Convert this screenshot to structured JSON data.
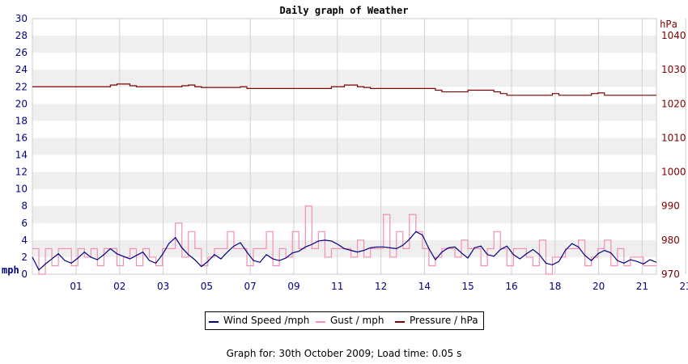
{
  "chart_data": {
    "type": "line",
    "title": "Daily graph of Weather",
    "left_axis": {
      "unit": "mph",
      "ylim": [
        0,
        30
      ],
      "ticks": [
        0,
        2,
        4,
        6,
        8,
        10,
        12,
        14,
        16,
        18,
        20,
        22,
        24,
        26,
        28,
        30
      ]
    },
    "right_axis": {
      "unit": "hPa",
      "ylim": [
        970,
        1045
      ],
      "ticks": [
        970,
        980,
        990,
        1000,
        1010,
        1020,
        1030,
        1040
      ]
    },
    "x_ticks": [
      "01",
      "02",
      "03",
      "05",
      "07",
      "09",
      "11",
      "12",
      "14",
      "15",
      "16",
      "18",
      "20",
      "21",
      "23"
    ],
    "grid": true,
    "legend_position": "bottom",
    "series": [
      {
        "name": "Wind Speed /mph",
        "color": "#00007f",
        "axis": "left",
        "x": [
          0,
          0.25,
          0.5,
          0.75,
          1.0,
          1.25,
          1.5,
          1.75,
          2.0,
          2.25,
          2.5,
          2.75,
          3.0,
          3.25,
          3.5,
          3.75,
          4.0,
          4.25,
          4.5,
          4.75,
          5.0,
          5.25,
          5.5,
          5.75,
          6.0,
          6.25,
          6.5,
          6.75,
          7.0,
          7.25,
          7.5,
          7.75,
          8.0,
          8.25,
          8.5,
          8.75,
          9.0,
          9.25,
          9.5,
          9.75,
          10.0,
          10.25,
          10.5,
          10.75,
          11.0,
          11.25,
          11.5,
          11.75,
          12.0,
          12.25,
          12.5,
          12.75,
          13.0,
          13.25,
          13.5,
          13.75,
          14.0,
          14.25,
          14.5,
          14.75,
          15.0,
          15.25,
          15.5,
          15.75,
          16.0,
          16.25,
          16.5,
          16.75,
          17.0,
          17.25,
          17.5,
          17.75,
          18.0,
          18.25,
          18.5,
          18.75,
          19.0,
          19.25,
          19.5,
          19.75,
          20.0,
          20.25,
          20.5,
          20.75,
          21.0,
          21.25,
          21.5,
          21.75,
          22.0,
          22.25,
          22.5,
          22.75,
          23.0,
          23.25,
          23.5,
          23.75,
          24.0
        ],
        "values": [
          2.0,
          0.5,
          1.2,
          1.8,
          2.4,
          1.6,
          1.3,
          1.9,
          2.6,
          2.0,
          1.7,
          2.3,
          3.0,
          2.4,
          2.1,
          1.8,
          2.2,
          2.6,
          1.6,
          1.3,
          2.3,
          3.6,
          4.3,
          3.1,
          2.3,
          1.7,
          0.9,
          1.5,
          2.3,
          1.8,
          2.6,
          3.3,
          3.7,
          2.6,
          1.6,
          1.4,
          2.3,
          1.8,
          1.6,
          1.9,
          2.5,
          2.7,
          3.2,
          3.5,
          3.9,
          4.0,
          3.9,
          3.5,
          3.0,
          2.8,
          2.6,
          2.8,
          3.1,
          3.2,
          3.2,
          3.1,
          3.0,
          3.4,
          4.1,
          5.0,
          4.6,
          3.0,
          1.7,
          2.6,
          3.1,
          3.2,
          2.5,
          1.9,
          3.1,
          3.3,
          2.3,
          2.1,
          2.9,
          3.3,
          2.3,
          1.8,
          2.4,
          2.9,
          2.3,
          1.3,
          1.1,
          1.5,
          2.8,
          3.6,
          3.2,
          2.2,
          1.6,
          2.4,
          2.8,
          2.5,
          1.6,
          1.3,
          1.7,
          1.5,
          1.2,
          1.7,
          1.4
        ]
      },
      {
        "name": "Gust / mph",
        "color": "#f48fb1",
        "axis": "left",
        "x": [
          0,
          0.25,
          0.5,
          0.75,
          1.0,
          1.25,
          1.5,
          1.75,
          2.0,
          2.25,
          2.5,
          2.75,
          3.0,
          3.25,
          3.5,
          3.75,
          4.0,
          4.25,
          4.5,
          4.75,
          5.0,
          5.25,
          5.5,
          5.75,
          6.0,
          6.25,
          6.5,
          6.75,
          7.0,
          7.25,
          7.5,
          7.75,
          8.0,
          8.25,
          8.5,
          8.75,
          9.0,
          9.25,
          9.5,
          9.75,
          10.0,
          10.25,
          10.5,
          10.75,
          11.0,
          11.25,
          11.5,
          11.75,
          12.0,
          12.25,
          12.5,
          12.75,
          13.0,
          13.25,
          13.5,
          13.75,
          14.0,
          14.25,
          14.5,
          14.75,
          15.0,
          15.25,
          15.5,
          15.75,
          16.0,
          16.25,
          16.5,
          16.75,
          17.0,
          17.25,
          17.5,
          17.75,
          18.0,
          18.25,
          18.5,
          18.75,
          19.0,
          19.25,
          19.5,
          19.75,
          20.0,
          20.25,
          20.5,
          20.75,
          21.0,
          21.25,
          21.5,
          21.75,
          22.0,
          22.25,
          22.5,
          22.75,
          23.0,
          23.25,
          23.5,
          23.75,
          24.0
        ],
        "values": [
          3,
          0,
          3,
          1,
          3,
          3,
          1,
          3,
          2,
          3,
          1,
          3,
          3,
          1,
          2,
          3,
          1,
          3,
          2,
          1,
          3,
          3,
          6,
          2,
          5,
          3,
          1,
          2,
          3,
          3,
          5,
          3,
          3,
          1,
          3,
          3,
          5,
          1,
          3,
          2,
          5,
          3,
          8,
          3,
          5,
          2,
          3,
          3,
          3,
          2,
          4,
          2,
          3,
          3,
          7,
          2,
          5,
          3,
          7,
          5,
          3,
          1,
          2,
          3,
          3,
          2,
          4,
          3,
          3,
          1,
          3,
          5,
          3,
          1,
          3,
          3,
          2,
          1,
          4,
          0,
          2,
          2,
          3,
          3,
          4,
          1,
          2,
          3,
          4,
          1,
          3,
          1,
          2,
          2,
          1,
          1,
          1
        ]
      },
      {
        "name": "Pressure / hPa",
        "color": "#7f0000",
        "axis": "right",
        "x": [
          0,
          0.25,
          0.5,
          0.75,
          1.0,
          1.25,
          1.5,
          1.75,
          2.0,
          2.25,
          2.5,
          2.75,
          3.0,
          3.25,
          3.5,
          3.75,
          4.0,
          4.25,
          4.5,
          4.75,
          5.0,
          5.25,
          5.5,
          5.75,
          6.0,
          6.25,
          6.5,
          6.75,
          7.0,
          7.25,
          7.5,
          7.75,
          8.0,
          8.25,
          8.5,
          8.75,
          9.0,
          9.25,
          9.5,
          9.75,
          10.0,
          10.25,
          10.5,
          10.75,
          11.0,
          11.25,
          11.5,
          11.75,
          12.0,
          12.25,
          12.5,
          12.75,
          13.0,
          13.25,
          13.5,
          13.75,
          14.0,
          14.25,
          14.5,
          14.75,
          15.0,
          15.25,
          15.5,
          15.75,
          16.0,
          16.25,
          16.5,
          16.75,
          17.0,
          17.25,
          17.5,
          17.75,
          18.0,
          18.25,
          18.5,
          18.75,
          19.0,
          19.25,
          19.5,
          19.75,
          20.0,
          20.25,
          20.5,
          20.75,
          21.0,
          21.25,
          21.5,
          21.75,
          22.0,
          22.25,
          22.5,
          22.75,
          23.0,
          23.25,
          23.5,
          23.75,
          24.0
        ],
        "values": [
          1025.0,
          1025.0,
          1025.0,
          1025.0,
          1025.0,
          1025.0,
          1025.0,
          1025.0,
          1025.0,
          1025.0,
          1025.0,
          1025.0,
          1025.5,
          1025.8,
          1025.8,
          1025.3,
          1025.0,
          1025.0,
          1025.0,
          1025.0,
          1025.0,
          1025.0,
          1025.0,
          1025.3,
          1025.5,
          1025.0,
          1024.8,
          1024.8,
          1024.8,
          1024.8,
          1024.8,
          1024.8,
          1025.0,
          1024.5,
          1024.5,
          1024.5,
          1024.5,
          1024.5,
          1024.5,
          1024.5,
          1024.5,
          1024.5,
          1024.5,
          1024.5,
          1024.5,
          1024.5,
          1025.0,
          1025.0,
          1025.5,
          1025.5,
          1025.0,
          1024.8,
          1024.5,
          1024.5,
          1024.5,
          1024.5,
          1024.5,
          1024.5,
          1024.5,
          1024.5,
          1024.5,
          1024.5,
          1024.0,
          1023.5,
          1023.5,
          1023.5,
          1023.5,
          1024.0,
          1024.0,
          1024.0,
          1024.0,
          1023.5,
          1023.0,
          1022.5,
          1022.5,
          1022.5,
          1022.5,
          1022.5,
          1022.5,
          1022.5,
          1023.0,
          1022.5,
          1022.5,
          1022.5,
          1022.5,
          1022.5,
          1023.0,
          1023.2,
          1022.5,
          1022.5,
          1022.5,
          1022.5,
          1022.5,
          1022.5,
          1022.5,
          1022.5,
          1022.5
        ]
      }
    ]
  },
  "legend": {
    "wind_label": "Wind Speed /mph",
    "gust_label": "Gust / mph",
    "pressure_label": "Pressure / hPa"
  },
  "footer": {
    "text": "Graph for: 30th October 2009; Load time: 0.05 s"
  },
  "colors": {
    "wind": "#00007f",
    "gust": "#f48fb1",
    "pressure": "#7f0000",
    "left_axis_text": "#000080",
    "right_axis_text": "#800000",
    "band": "#efefef",
    "grid": "#d0d0d0"
  }
}
